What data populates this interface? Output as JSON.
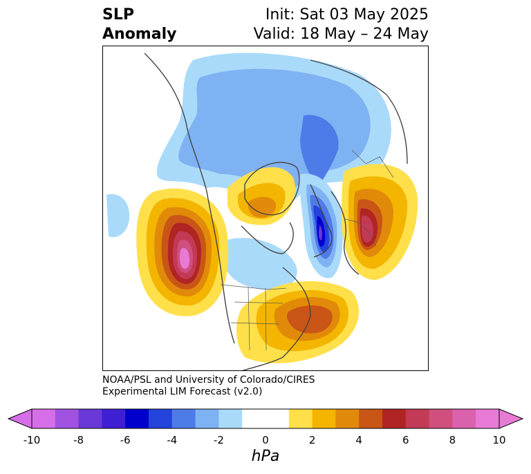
{
  "header": {
    "title_line1": "SLP",
    "title_line2": "Anomaly",
    "init_text": "Init: Sat 03 May 2025",
    "valid_text": "Valid: 18 May – 24 May"
  },
  "credit": {
    "line1": "NOAA/PSL and University of Colorado/CIRES",
    "line2": "Experimental LIM Forecast (v2.0)"
  },
  "colorbar": {
    "unit": "hPa",
    "ticks": [
      "-10",
      "-8",
      "-6",
      "-4",
      "-2",
      "0",
      "2",
      "4",
      "6",
      "8",
      "10"
    ],
    "colors": [
      "#d66ee8",
      "#a152e0",
      "#6b38d8",
      "#3f1fd4",
      "#0000cd",
      "#2443db",
      "#4f7be8",
      "#7fb2f2",
      "#aadafa",
      "#ffffff",
      "#ffffff",
      "#ffe04a",
      "#f3b500",
      "#e18a0a",
      "#c95516",
      "#b02424",
      "#c23a55",
      "#cf4f7f",
      "#da62ad",
      "#e87ad6"
    ]
  }
}
